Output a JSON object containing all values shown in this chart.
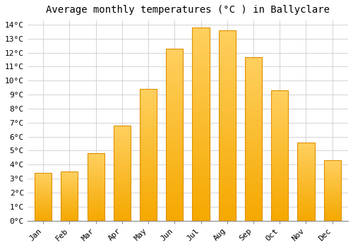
{
  "title": "Average monthly temperatures (°C ) in Ballyclare",
  "months": [
    "Jan",
    "Feb",
    "Mar",
    "Apr",
    "May",
    "Jun",
    "Jul",
    "Aug",
    "Sep",
    "Oct",
    "Nov",
    "Dec"
  ],
  "values": [
    3.4,
    3.5,
    4.8,
    6.8,
    9.4,
    12.3,
    13.8,
    13.6,
    11.7,
    9.3,
    5.6,
    4.3
  ],
  "bar_color_bottom": "#F5A800",
  "bar_color_top": "#FFD060",
  "background_color": "#FFFFFF",
  "grid_color": "#CCCCCC",
  "ylim": [
    0,
    14
  ],
  "ytick_step": 1,
  "title_fontsize": 10,
  "tick_fontsize": 8,
  "font_family": "monospace"
}
